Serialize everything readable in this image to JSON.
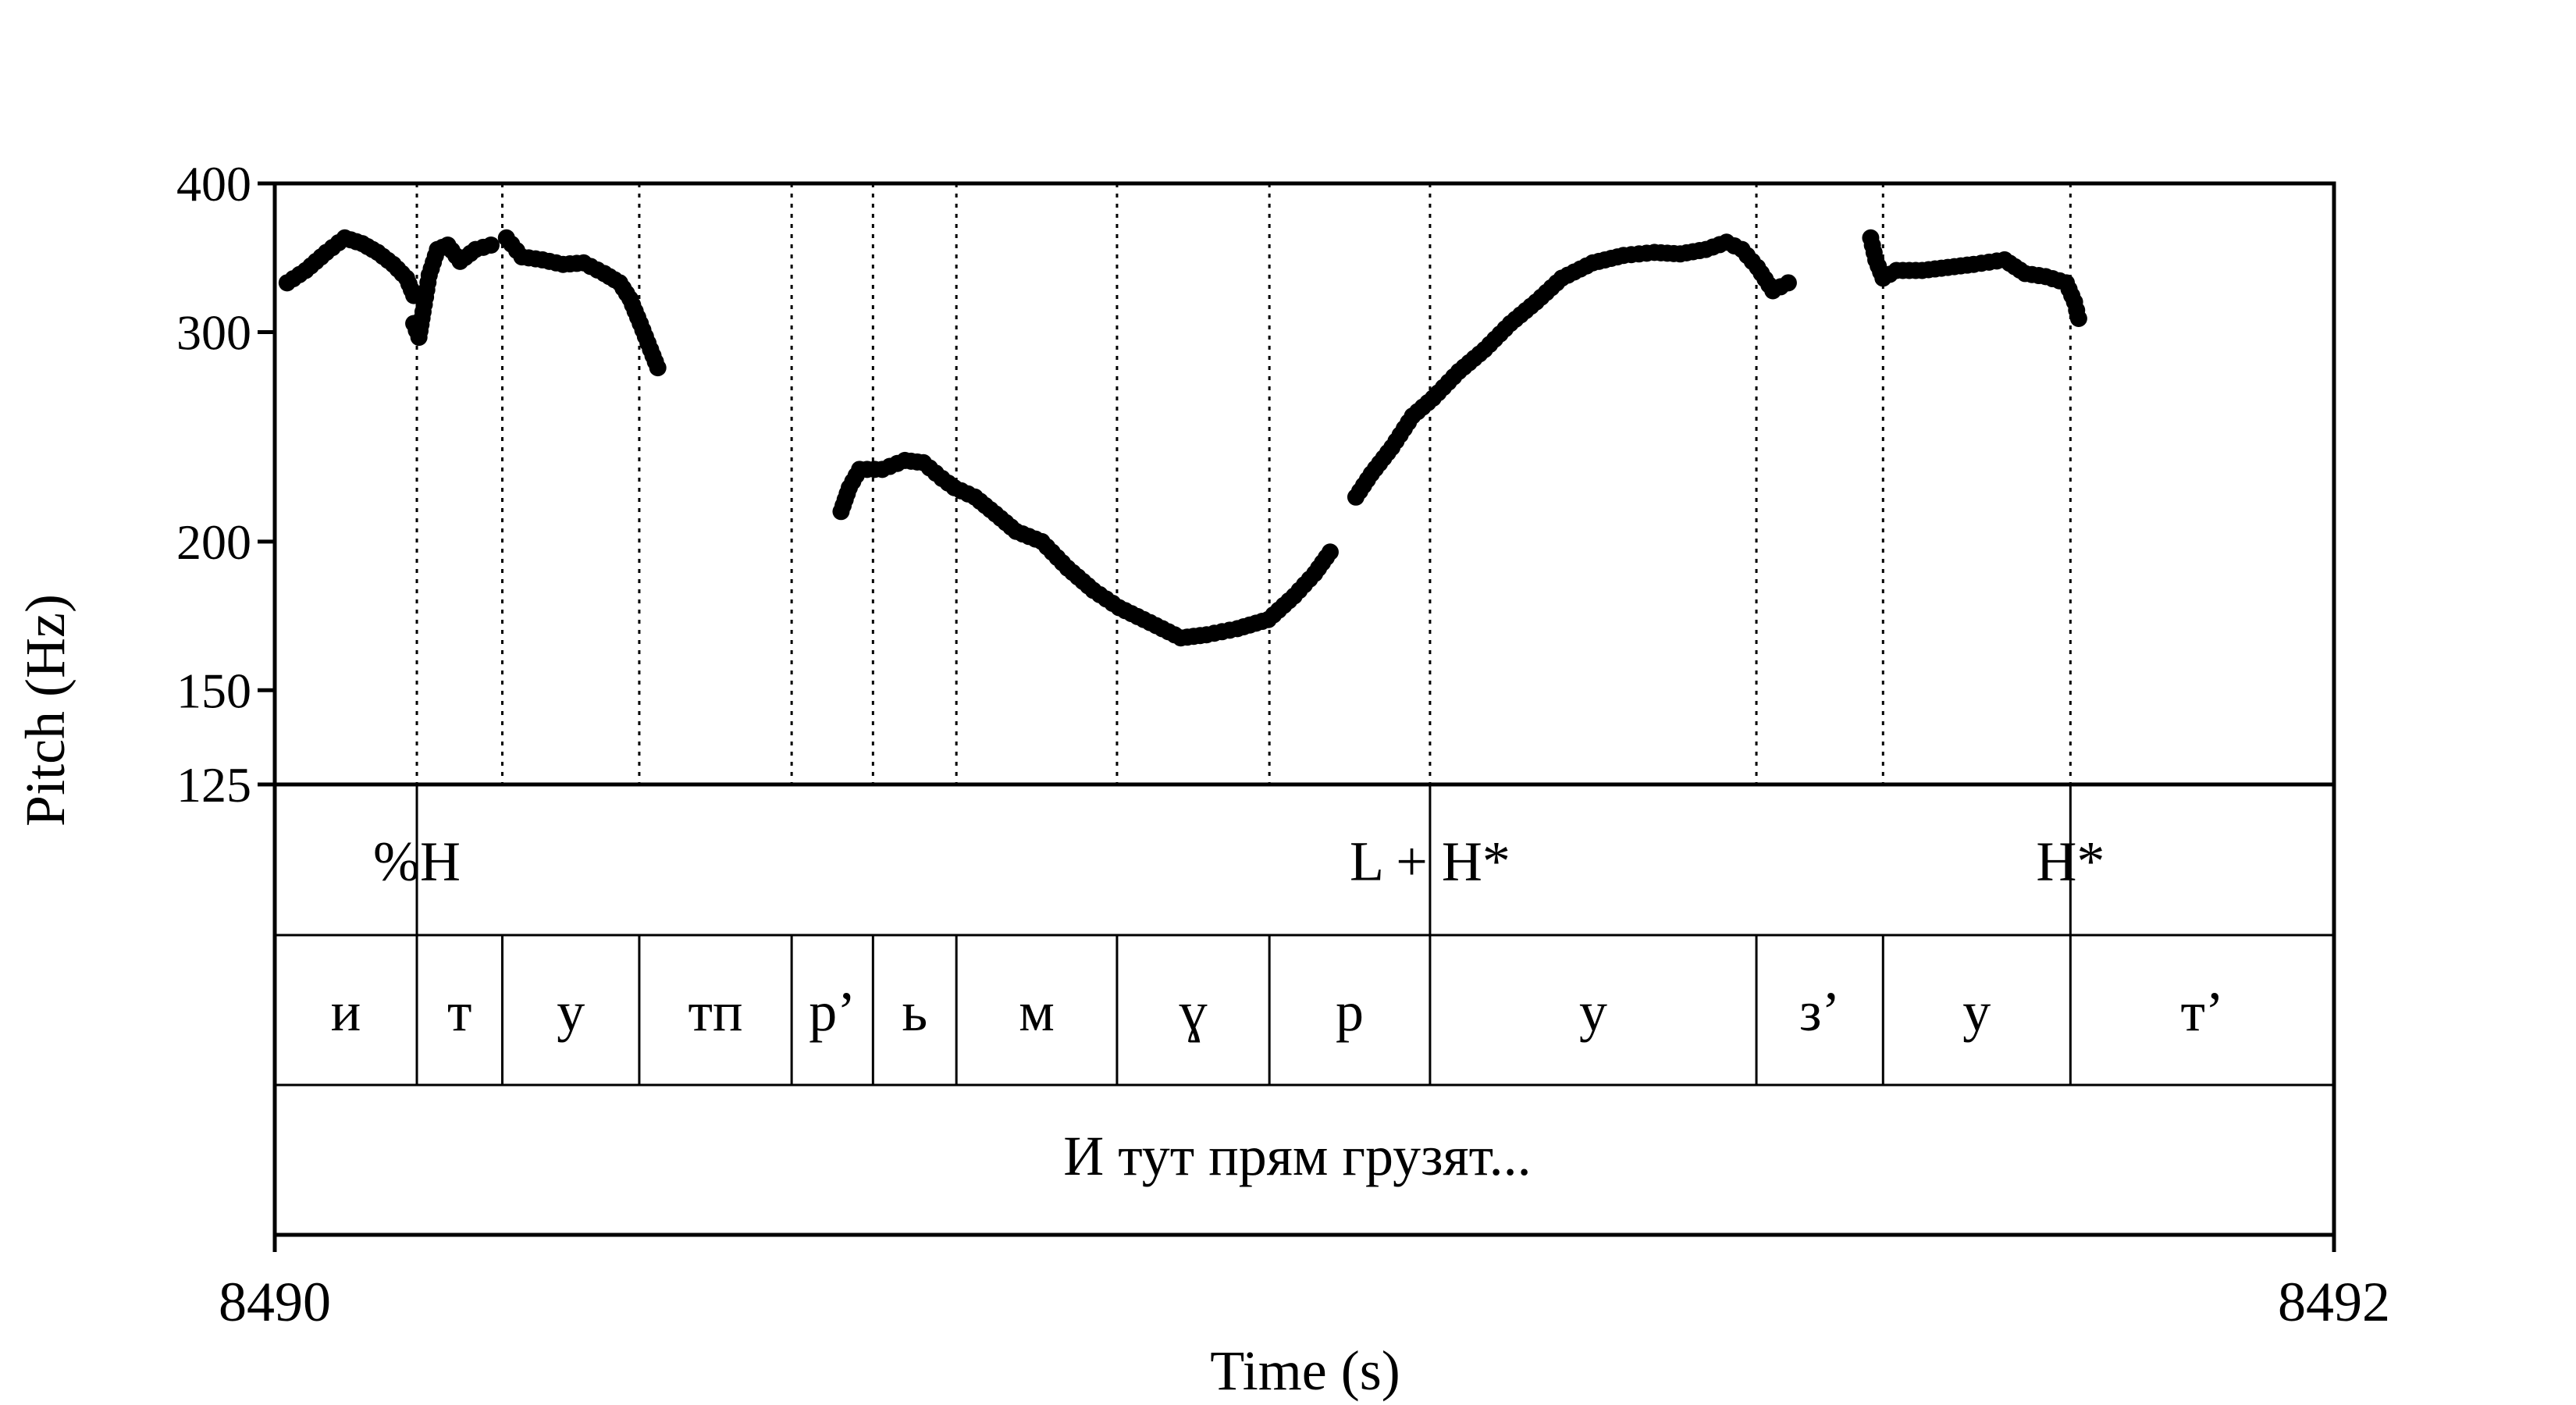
{
  "chart_data": {
    "type": "scatter",
    "ylabel": "Pitch (Hz)",
    "xlabel": "Time (s)",
    "y_scale": "log",
    "ylim": [
      125,
      400
    ],
    "y_ticks": [
      "400",
      "300",
      "200",
      "150",
      "125"
    ],
    "xlim": [
      8490,
      8492
    ],
    "x_ticks": [
      "8490",
      "8492"
    ],
    "grid": false,
    "series_color": "#000000",
    "boundaries": [
      8490.138,
      8490.221,
      8490.354,
      8490.502,
      8490.581,
      8490.662,
      8490.818,
      8490.966,
      8491.122,
      8491.439,
      8491.562,
      8491.744
    ],
    "tones": [
      {
        "time": 8490.138,
        "label": "%H"
      },
      {
        "time": 8491.122,
        "label": "L + H*"
      },
      {
        "time": 8491.744,
        "label": "H*"
      }
    ],
    "segments": [
      {
        "label": "и",
        "start": 8490.0,
        "end": 8490.138
      },
      {
        "label": "т",
        "start": 8490.138,
        "end": 8490.221
      },
      {
        "label": "у",
        "start": 8490.221,
        "end": 8490.354
      },
      {
        "label": "тп",
        "start": 8490.354,
        "end": 8490.502
      },
      {
        "label": "р’",
        "start": 8490.502,
        "end": 8490.581
      },
      {
        "label": "ь",
        "start": 8490.581,
        "end": 8490.662
      },
      {
        "label": "м",
        "start": 8490.662,
        "end": 8490.818
      },
      {
        "label": "ɣ",
        "start": 8490.818,
        "end": 8490.966
      },
      {
        "label": "р",
        "start": 8490.966,
        "end": 8491.122
      },
      {
        "label": "у",
        "start": 8491.122,
        "end": 8491.439
      },
      {
        "label": "з’",
        "start": 8491.439,
        "end": 8491.562
      },
      {
        "label": "у",
        "start": 8491.562,
        "end": 8491.744
      },
      {
        "label": "т’",
        "start": 8491.744,
        "end": 8492.0
      }
    ],
    "sentence": "И тут прям грузят...",
    "pitch_contours": [
      [
        [
          8490.012,
          330
        ],
        [
          8490.03,
          338
        ],
        [
          8490.05,
          350
        ],
        [
          8490.068,
          360
        ],
        [
          8490.085,
          356
        ],
        [
          8490.1,
          350
        ],
        [
          8490.115,
          342
        ],
        [
          8490.128,
          333
        ],
        [
          8490.135,
          322
        ]
      ],
      [
        [
          8490.135,
          305
        ],
        [
          8490.14,
          297
        ],
        [
          8490.144,
          312
        ],
        [
          8490.15,
          335
        ],
        [
          8490.158,
          352
        ],
        [
          8490.168,
          355
        ],
        [
          8490.18,
          344
        ],
        [
          8490.195,
          352
        ],
        [
          8490.21,
          355
        ]
      ],
      [
        [
          8490.225,
          360
        ],
        [
          8490.24,
          347
        ],
        [
          8490.26,
          345
        ],
        [
          8490.28,
          342
        ],
        [
          8490.3,
          343
        ],
        [
          8490.32,
          336
        ],
        [
          8490.335,
          330
        ],
        [
          8490.345,
          320
        ],
        [
          8490.355,
          305
        ],
        [
          8490.365,
          290
        ],
        [
          8490.372,
          280
        ]
      ],
      [
        [
          8490.55,
          212
        ],
        [
          8490.558,
          222
        ],
        [
          8490.568,
          230
        ],
        [
          8490.59,
          230
        ],
        [
          8490.612,
          234
        ],
        [
          8490.63,
          233
        ],
        [
          8490.648,
          226
        ],
        [
          8490.66,
          222
        ],
        [
          8490.68,
          218
        ],
        [
          8490.7,
          211
        ],
        [
          8490.72,
          204
        ],
        [
          8490.745,
          200
        ],
        [
          8490.77,
          190
        ],
        [
          8490.795,
          182
        ],
        [
          8490.82,
          176
        ],
        [
          8490.85,
          171
        ],
        [
          8490.88,
          166
        ],
        [
          8490.905,
          167
        ],
        [
          8490.935,
          169
        ],
        [
          8490.965,
          172
        ],
        [
          8490.99,
          180
        ],
        [
          8491.01,
          188
        ],
        [
          8491.025,
          196
        ]
      ],
      [
        [
          8491.05,
          218
        ],
        [
          8491.065,
          228
        ],
        [
          8491.085,
          240
        ],
        [
          8491.105,
          255
        ],
        [
          8491.125,
          264
        ],
        [
          8491.15,
          278
        ],
        [
          8491.175,
          290
        ],
        [
          8491.2,
          305
        ],
        [
          8491.225,
          318
        ],
        [
          8491.25,
          333
        ],
        [
          8491.28,
          343
        ],
        [
          8491.31,
          348
        ],
        [
          8491.34,
          350
        ],
        [
          8491.365,
          349
        ],
        [
          8491.39,
          352
        ],
        [
          8491.41,
          357
        ],
        [
          8491.425,
          352
        ],
        [
          8491.44,
          340
        ],
        [
          8491.455,
          325
        ],
        [
          8491.47,
          330
        ]
      ],
      [
        [
          8491.55,
          360
        ],
        [
          8491.555,
          345
        ],
        [
          8491.562,
          333
        ],
        [
          8491.575,
          338
        ],
        [
          8491.6,
          338
        ],
        [
          8491.625,
          340
        ],
        [
          8491.65,
          342
        ],
        [
          8491.68,
          345
        ],
        [
          8491.7,
          336
        ],
        [
          8491.72,
          334
        ],
        [
          8491.74,
          330
        ],
        [
          8491.748,
          318
        ],
        [
          8491.752,
          308
        ]
      ]
    ]
  }
}
